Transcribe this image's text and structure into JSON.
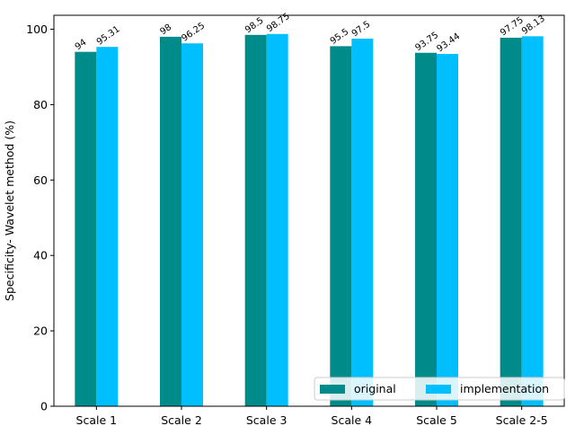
{
  "chart_data": {
    "type": "bar",
    "title": "",
    "xlabel": "",
    "ylabel": "Specificity- Wavelet method (%)",
    "categories": [
      "Scale 1",
      "Scale 2",
      "Scale 3",
      "Scale 4",
      "Scale 5",
      "Scale 2-5"
    ],
    "series": [
      {
        "name": "original",
        "color": "#008b8b",
        "values": [
          94,
          98,
          98.5,
          95.5,
          93.75,
          97.75
        ],
        "labels": [
          "94",
          "98",
          "98.5",
          "95.5",
          "93.75",
          "97.75"
        ]
      },
      {
        "name": "implementation",
        "color": "#00bfff",
        "values": [
          95.31,
          96.25,
          98.75,
          97.5,
          93.44,
          98.13
        ],
        "labels": [
          "95.31",
          "96.25",
          "98.75",
          "97.5",
          "93.44",
          "98.13"
        ]
      }
    ],
    "ylim": [
      0,
      103.7
    ],
    "yticks": [
      0,
      20,
      40,
      60,
      80,
      100
    ],
    "grid": false,
    "legend_position": "lower-right",
    "legend_columns": 2
  }
}
